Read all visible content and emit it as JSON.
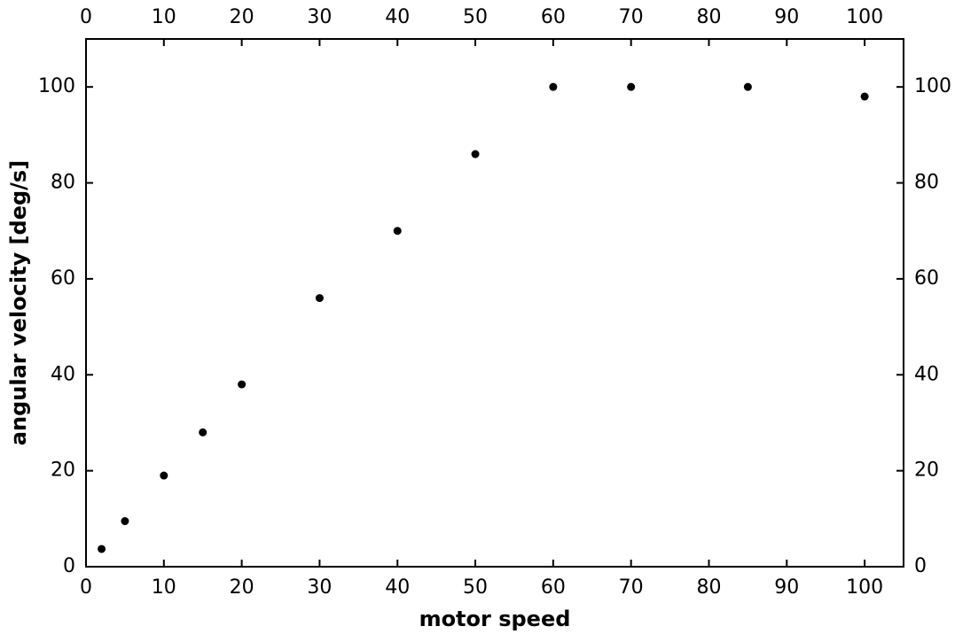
{
  "chart_data": {
    "type": "scatter",
    "x_label": "motor speed",
    "y_label": "angular velocity [deg/s]",
    "x": [
      2,
      5,
      10,
      15,
      20,
      30,
      40,
      50,
      60,
      70,
      85,
      100
    ],
    "series": [
      {
        "color": "#000000",
        "values": [
          3.7,
          9.5,
          19,
          28,
          38,
          56,
          70,
          86,
          100,
          100,
          100,
          98
        ]
      }
    ],
    "xlim": [
      0,
      105
    ],
    "ylim": [
      0,
      110
    ],
    "xticks": [
      0,
      10,
      20,
      30,
      40,
      50,
      60,
      70,
      80,
      90,
      100
    ],
    "yticks": [
      0,
      20,
      40,
      60,
      80,
      100
    ]
  }
}
